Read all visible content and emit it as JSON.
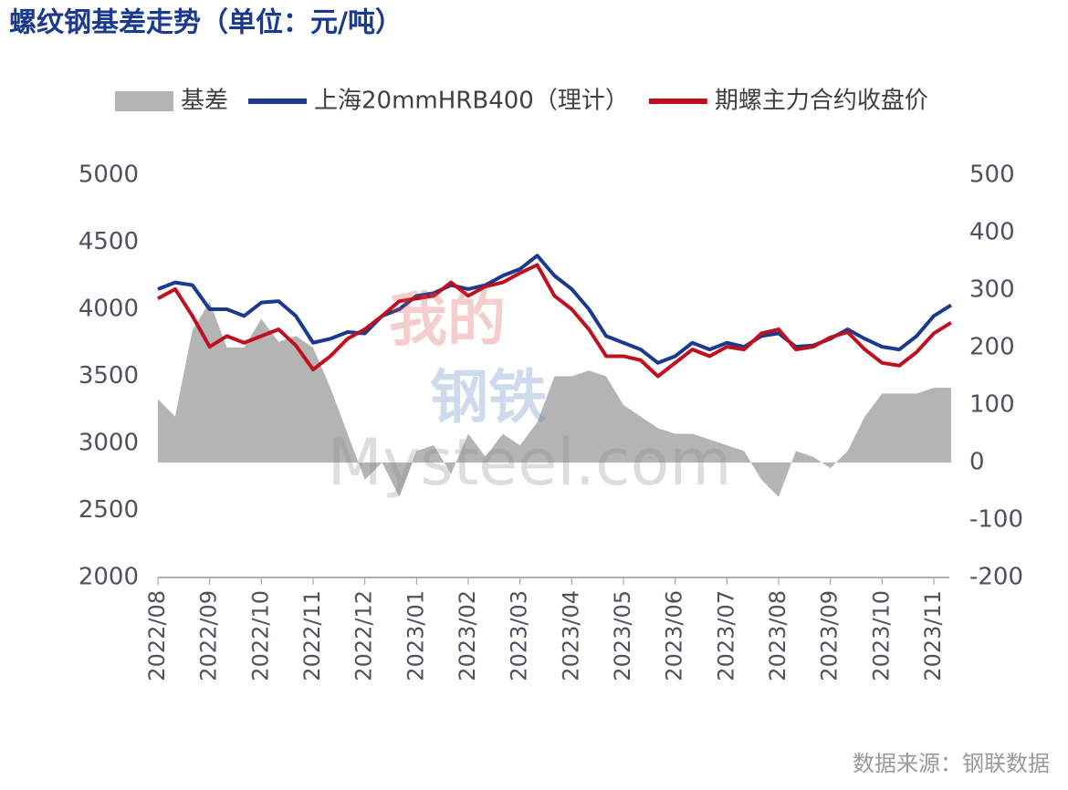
{
  "chart_data": {
    "type": "line",
    "title": "螺纹钢基差走势（单位：元/吨）",
    "source": "数据来源：钢联数据",
    "watermark": [
      "我的",
      "钢铁",
      "Mysteel.com"
    ],
    "categories": [
      "2022/08",
      null,
      null,
      "2022/09",
      null,
      null,
      "2022/10",
      null,
      null,
      "2022/11",
      null,
      null,
      "2022/12",
      null,
      null,
      "2023/01",
      null,
      null,
      "2023/02",
      null,
      null,
      "2023/03",
      null,
      null,
      "2023/04",
      null,
      null,
      "2023/05",
      null,
      null,
      "2023/06",
      null,
      null,
      "2023/07",
      null,
      null,
      "2023/08",
      null,
      null,
      "2023/09",
      null,
      null,
      "2023/10",
      null,
      null,
      "2023/11",
      null
    ],
    "series": [
      {
        "name": "基差",
        "type": "area",
        "axis": "y2",
        "color": "#b4b4b4",
        "values": [
          110,
          80,
          230,
          280,
          200,
          200,
          250,
          210,
          220,
          200,
          130,
          50,
          -30,
          0,
          -60,
          20,
          30,
          -20,
          50,
          10,
          50,
          30,
          70,
          150,
          150,
          160,
          150,
          100,
          80,
          60,
          50,
          50,
          40,
          30,
          20,
          -30,
          -60,
          20,
          10,
          -10,
          20,
          80,
          120,
          120,
          120,
          130,
          130
        ]
      },
      {
        "name": "上海20mmHRB400（理计）",
        "type": "line",
        "color": "#1a3a8f",
        "values": [
          4150,
          4200,
          4180,
          4000,
          4000,
          3950,
          4050,
          4060,
          3950,
          3750,
          3780,
          3830,
          3820,
          3950,
          4000,
          4100,
          4120,
          4180,
          4150,
          4180,
          4250,
          4300,
          4400,
          4250,
          4150,
          4000,
          3800,
          3750,
          3700,
          3600,
          3650,
          3750,
          3700,
          3750,
          3720,
          3800,
          3820,
          3720,
          3730,
          3780,
          3850,
          3780,
          3720,
          3700,
          3800,
          3950,
          4030
        ]
      },
      {
        "name": "期螺主力合约收盘价",
        "type": "line",
        "color": "#c0101e",
        "values": [
          4080,
          4150,
          3950,
          3720,
          3800,
          3750,
          3800,
          3850,
          3730,
          3550,
          3650,
          3780,
          3850,
          3950,
          4060,
          4080,
          4100,
          4200,
          4100,
          4170,
          4200,
          4270,
          4330,
          4100,
          4000,
          3850,
          3650,
          3650,
          3620,
          3500,
          3600,
          3700,
          3650,
          3720,
          3700,
          3820,
          3850,
          3700,
          3720,
          3790,
          3830,
          3700,
          3600,
          3580,
          3680,
          3820,
          3900
        ]
      }
    ],
    "ylim": [
      2000,
      5000
    ],
    "yticks": [
      2000,
      2500,
      3000,
      3500,
      4000,
      4500,
      5000
    ],
    "y2lim": [
      -200,
      500
    ],
    "y2ticks": [
      -200,
      -100,
      0,
      100,
      200,
      300,
      400,
      500
    ],
    "legend": "top"
  }
}
